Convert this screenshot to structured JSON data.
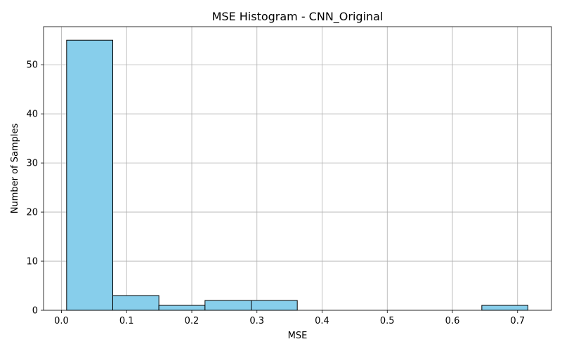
{
  "chart_data": {
    "type": "bar",
    "title": "MSE Histogram - CNN_Original",
    "xlabel": "MSE",
    "ylabel": "Number of Samples",
    "xlim": [
      -0.0275,
      0.752
    ],
    "ylim": [
      0,
      57.75
    ],
    "grid": true,
    "bar_color": "#87ceeb",
    "edge_color": "#000000",
    "xticks": [
      0.0,
      0.1,
      0.2,
      0.3,
      0.4,
      0.5,
      0.6,
      0.7
    ],
    "xtick_labels": [
      "0.0",
      "0.1",
      "0.2",
      "0.3",
      "0.4",
      "0.5",
      "0.6",
      "0.7"
    ],
    "yticks": [
      0,
      10,
      20,
      30,
      40,
      50
    ],
    "ytick_labels": [
      "0",
      "10",
      "20",
      "30",
      "40",
      "50"
    ],
    "bins": [
      {
        "start": 0.0079,
        "end": 0.0787,
        "count": 55
      },
      {
        "start": 0.0787,
        "end": 0.1495,
        "count": 3
      },
      {
        "start": 0.1495,
        "end": 0.2203,
        "count": 1
      },
      {
        "start": 0.2203,
        "end": 0.2911,
        "count": 2
      },
      {
        "start": 0.2911,
        "end": 0.3619,
        "count": 2
      },
      {
        "start": 0.3619,
        "end": 0.4327,
        "count": 0
      },
      {
        "start": 0.4327,
        "end": 0.5035,
        "count": 0
      },
      {
        "start": 0.5035,
        "end": 0.5743,
        "count": 0
      },
      {
        "start": 0.5743,
        "end": 0.6451,
        "count": 0
      },
      {
        "start": 0.6451,
        "end": 0.7159,
        "count": 1
      }
    ]
  }
}
